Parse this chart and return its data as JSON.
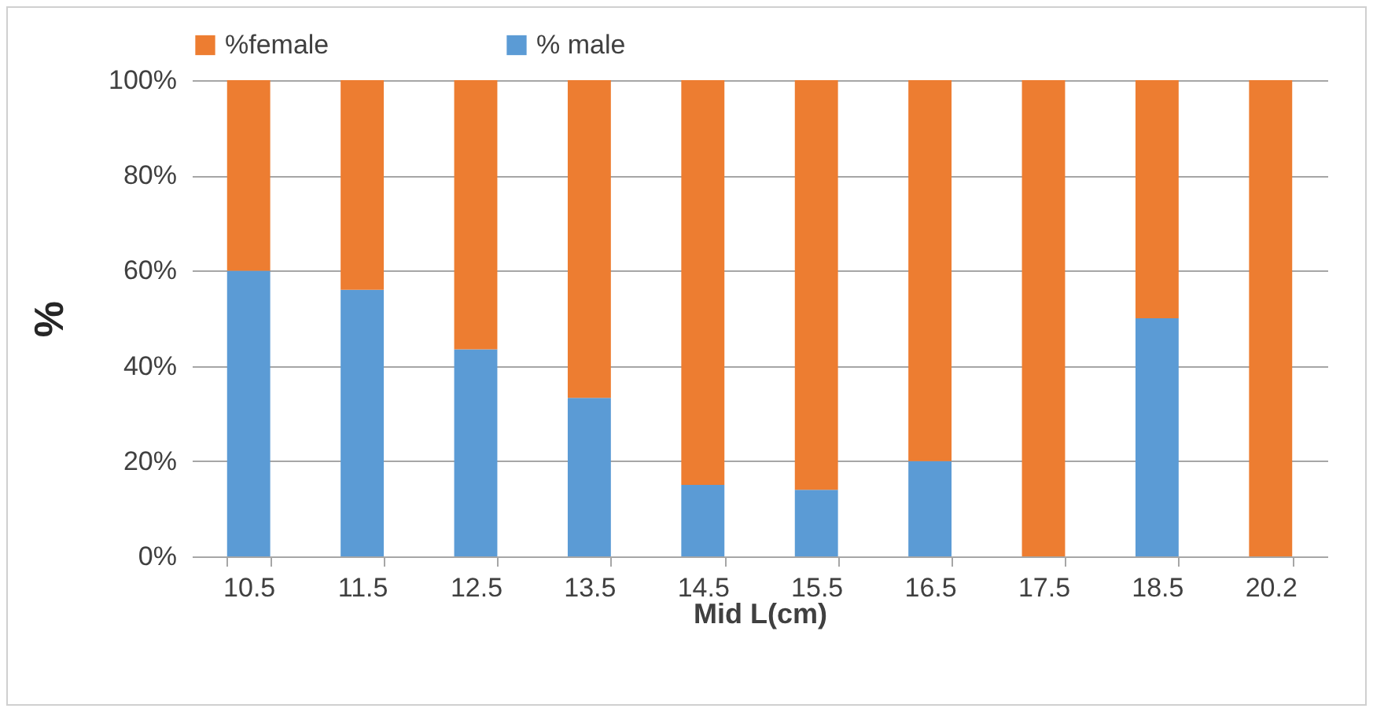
{
  "chart_data": {
    "type": "bar",
    "stacked": true,
    "xlabel": "Mid L(cm)",
    "ylabel": "%",
    "categories": [
      "10.5",
      "11.5",
      "12.5",
      "13.5",
      "14.5",
      "15.5",
      "16.5",
      "17.5",
      "18.5",
      "20.2"
    ],
    "series": [
      {
        "name": "% male",
        "color": "#5b9bd5",
        "values": [
          60,
          56,
          43.5,
          33.3,
          15,
          14,
          20,
          0,
          50,
          0
        ]
      },
      {
        "name": "%female",
        "color": "#ed7d31",
        "values": [
          40,
          44,
          56.5,
          66.7,
          85,
          86,
          80,
          100,
          50,
          100
        ]
      }
    ],
    "ylim": [
      0,
      100
    ],
    "yticks": [
      {
        "value": 0,
        "label": "0%"
      },
      {
        "value": 20,
        "label": "20%"
      },
      {
        "value": 40,
        "label": "40%"
      },
      {
        "value": 60,
        "label": "60%"
      },
      {
        "value": 80,
        "label": "80%"
      },
      {
        "value": 100,
        "label": "100%"
      }
    ],
    "grid": "y",
    "legend": "top"
  }
}
